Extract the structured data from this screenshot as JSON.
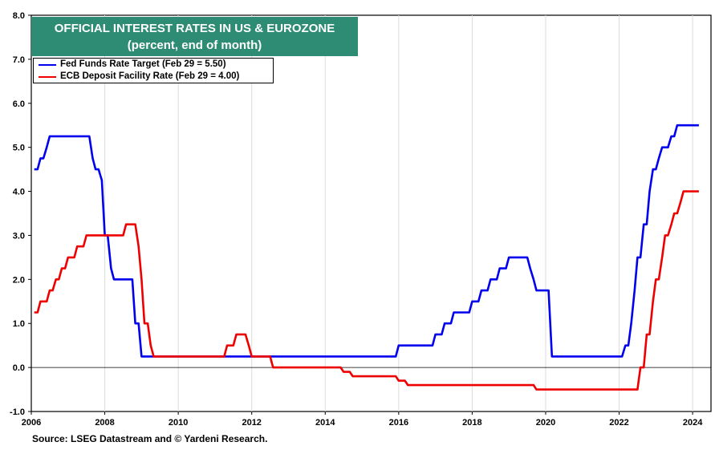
{
  "chart_data": {
    "type": "line",
    "title": "OFFICIAL INTEREST RATES IN US & EUROZONE",
    "subtitle": "(percent, end of month)",
    "source": "Source: LSEG Datastream and © Yardeni Research.",
    "xlabel": "",
    "ylabel": "",
    "xlim": [
      2006,
      2024.5
    ],
    "ylim": [
      -1.0,
      8.0
    ],
    "x_ticks": [
      "2006",
      "2008",
      "2010",
      "2012",
      "2014",
      "2016",
      "2018",
      "2020",
      "2022",
      "2024"
    ],
    "y_ticks": [
      "-1.0",
      "0.0",
      "1.0",
      "2.0",
      "3.0",
      "4.0",
      "5.0",
      "6.0",
      "7.0",
      "8.0"
    ],
    "grid": "vertical",
    "legend_position": "top-left",
    "series": [
      {
        "name": "Fed Funds Rate Target (Feb 29 = 5.50)",
        "color": "#0000ee",
        "points": [
          [
            2006.08,
            4.5
          ],
          [
            2006.17,
            4.5
          ],
          [
            2006.25,
            4.75
          ],
          [
            2006.33,
            4.75
          ],
          [
            2006.42,
            5.0
          ],
          [
            2006.5,
            5.25
          ],
          [
            2007.58,
            5.25
          ],
          [
            2007.67,
            4.75
          ],
          [
            2007.75,
            4.5
          ],
          [
            2007.83,
            4.5
          ],
          [
            2007.92,
            4.25
          ],
          [
            2008.0,
            3.0
          ],
          [
            2008.08,
            3.0
          ],
          [
            2008.17,
            2.25
          ],
          [
            2008.25,
            2.0
          ],
          [
            2008.75,
            2.0
          ],
          [
            2008.83,
            1.0
          ],
          [
            2008.92,
            1.0
          ],
          [
            2009.0,
            0.25
          ],
          [
            2015.92,
            0.25
          ],
          [
            2016.0,
            0.5
          ],
          [
            2016.92,
            0.5
          ],
          [
            2017.0,
            0.75
          ],
          [
            2017.17,
            0.75
          ],
          [
            2017.25,
            1.0
          ],
          [
            2017.42,
            1.0
          ],
          [
            2017.5,
            1.25
          ],
          [
            2017.92,
            1.25
          ],
          [
            2018.0,
            1.5
          ],
          [
            2018.17,
            1.5
          ],
          [
            2018.25,
            1.75
          ],
          [
            2018.42,
            1.75
          ],
          [
            2018.5,
            2.0
          ],
          [
            2018.67,
            2.0
          ],
          [
            2018.75,
            2.25
          ],
          [
            2018.92,
            2.25
          ],
          [
            2019.0,
            2.5
          ],
          [
            2019.5,
            2.5
          ],
          [
            2019.58,
            2.25
          ],
          [
            2019.67,
            2.0
          ],
          [
            2019.75,
            1.75
          ],
          [
            2020.08,
            1.75
          ],
          [
            2020.17,
            0.25
          ],
          [
            2022.08,
            0.25
          ],
          [
            2022.17,
            0.5
          ],
          [
            2022.25,
            0.5
          ],
          [
            2022.33,
            1.0
          ],
          [
            2022.42,
            1.75
          ],
          [
            2022.5,
            2.5
          ],
          [
            2022.58,
            2.5
          ],
          [
            2022.67,
            3.25
          ],
          [
            2022.75,
            3.25
          ],
          [
            2022.83,
            4.0
          ],
          [
            2022.92,
            4.5
          ],
          [
            2023.0,
            4.5
          ],
          [
            2023.08,
            4.75
          ],
          [
            2023.17,
            5.0
          ],
          [
            2023.33,
            5.0
          ],
          [
            2023.42,
            5.25
          ],
          [
            2023.5,
            5.25
          ],
          [
            2023.58,
            5.5
          ],
          [
            2024.17,
            5.5
          ]
        ]
      },
      {
        "name": "ECB Deposit Facility Rate (Feb 29 = 4.00)",
        "color": "#ee0000",
        "points": [
          [
            2006.08,
            1.25
          ],
          [
            2006.17,
            1.25
          ],
          [
            2006.25,
            1.5
          ],
          [
            2006.42,
            1.5
          ],
          [
            2006.5,
            1.75
          ],
          [
            2006.58,
            1.75
          ],
          [
            2006.67,
            2.0
          ],
          [
            2006.75,
            2.0
          ],
          [
            2006.83,
            2.25
          ],
          [
            2006.92,
            2.25
          ],
          [
            2007.0,
            2.5
          ],
          [
            2007.17,
            2.5
          ],
          [
            2007.25,
            2.75
          ],
          [
            2007.42,
            2.75
          ],
          [
            2007.5,
            3.0
          ],
          [
            2008.5,
            3.0
          ],
          [
            2008.58,
            3.25
          ],
          [
            2008.83,
            3.25
          ],
          [
            2008.92,
            2.75
          ],
          [
            2009.0,
            2.0
          ],
          [
            2009.08,
            1.0
          ],
          [
            2009.17,
            1.0
          ],
          [
            2009.25,
            0.5
          ],
          [
            2009.33,
            0.25
          ],
          [
            2011.25,
            0.25
          ],
          [
            2011.33,
            0.5
          ],
          [
            2011.5,
            0.5
          ],
          [
            2011.58,
            0.75
          ],
          [
            2011.83,
            0.75
          ],
          [
            2011.92,
            0.5
          ],
          [
            2012.0,
            0.25
          ],
          [
            2012.5,
            0.25
          ],
          [
            2012.58,
            0.0
          ],
          [
            2014.42,
            0.0
          ],
          [
            2014.5,
            -0.1
          ],
          [
            2014.67,
            -0.1
          ],
          [
            2014.75,
            -0.2
          ],
          [
            2015.92,
            -0.2
          ],
          [
            2016.0,
            -0.3
          ],
          [
            2016.17,
            -0.3
          ],
          [
            2016.25,
            -0.4
          ],
          [
            2019.67,
            -0.4
          ],
          [
            2019.75,
            -0.5
          ],
          [
            2022.5,
            -0.5
          ],
          [
            2022.58,
            0.0
          ],
          [
            2022.67,
            0.0
          ],
          [
            2022.75,
            0.75
          ],
          [
            2022.83,
            0.75
          ],
          [
            2022.92,
            1.5
          ],
          [
            2023.0,
            2.0
          ],
          [
            2023.08,
            2.0
          ],
          [
            2023.17,
            2.5
          ],
          [
            2023.25,
            3.0
          ],
          [
            2023.33,
            3.0
          ],
          [
            2023.42,
            3.25
          ],
          [
            2023.5,
            3.5
          ],
          [
            2023.58,
            3.5
          ],
          [
            2023.67,
            3.75
          ],
          [
            2023.75,
            4.0
          ],
          [
            2024.17,
            4.0
          ]
        ]
      }
    ]
  }
}
